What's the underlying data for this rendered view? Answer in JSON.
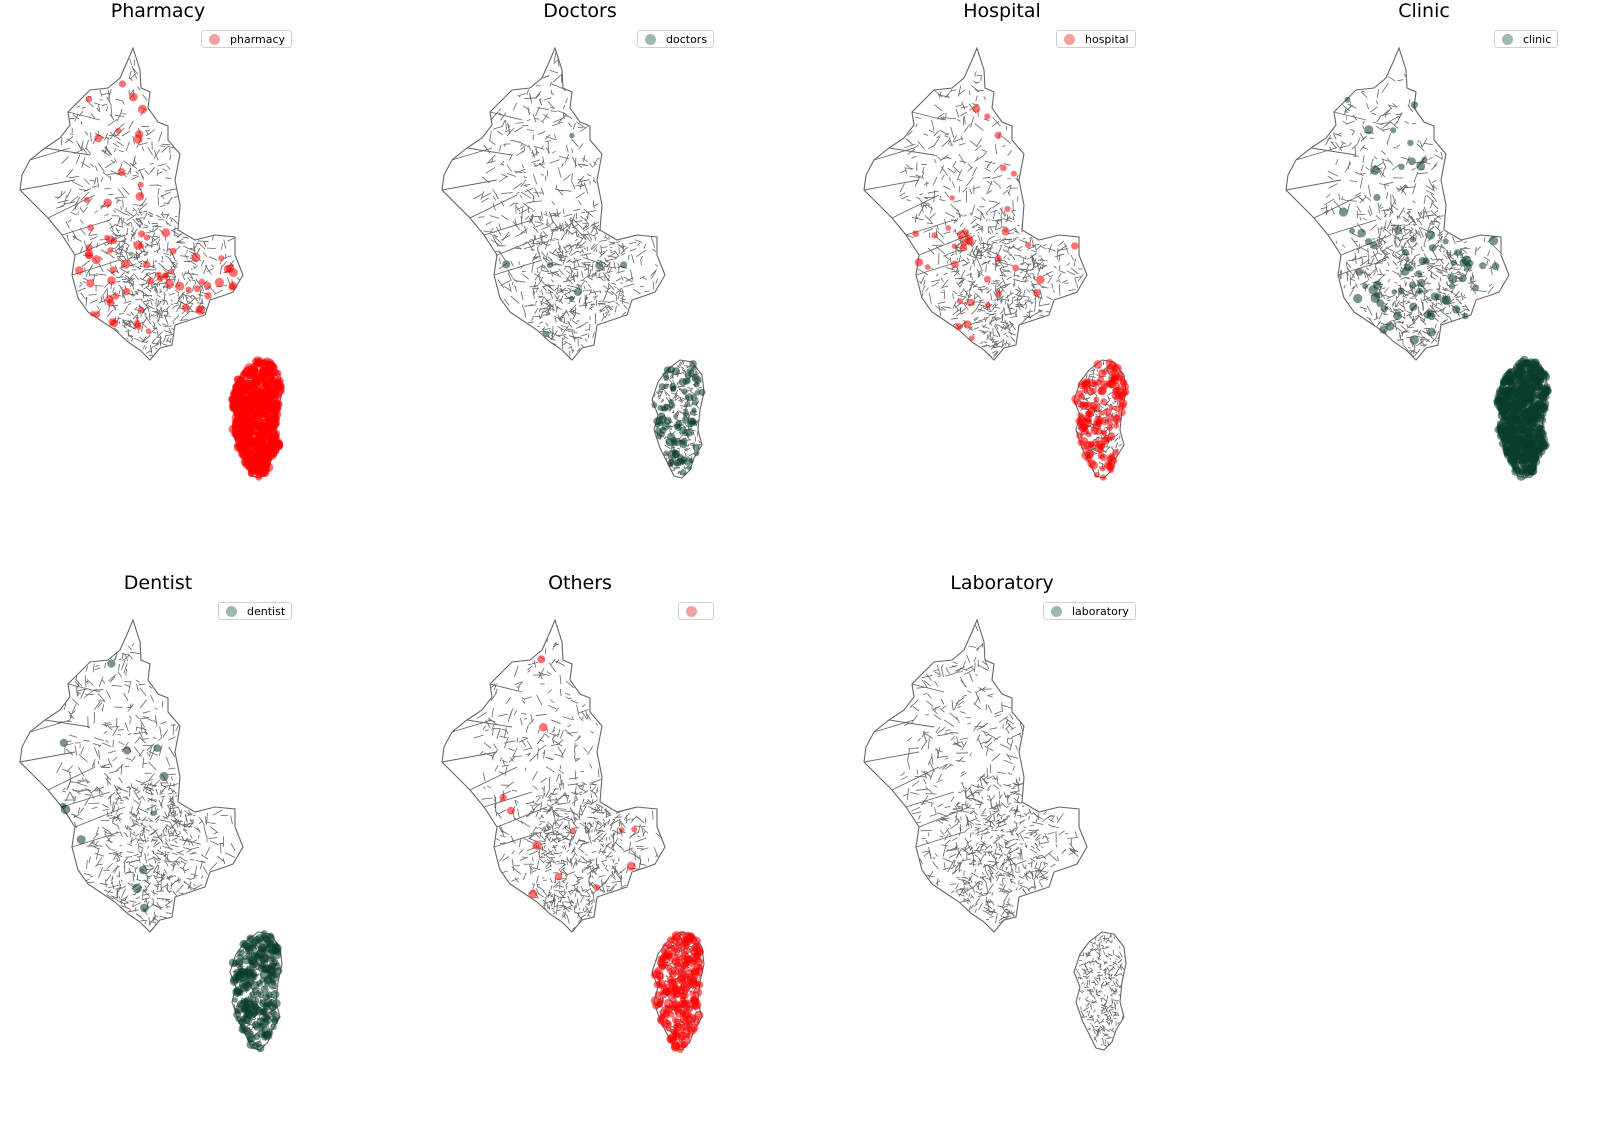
{
  "panels": [
    {
      "title": "Pharmacy",
      "legend": "pharmacy",
      "color": "#ff0000",
      "density": "very-high"
    },
    {
      "title": "Doctors",
      "legend": "doctors",
      "color": "#0a3d2e",
      "density": "low"
    },
    {
      "title": "Hospital",
      "legend": "hospital",
      "color": "#ff0000",
      "density": "medium"
    },
    {
      "title": "Clinic",
      "legend": "clinic",
      "color": "#0a3d2e",
      "density": "very-high"
    },
    {
      "title": "Dentist",
      "legend": "dentist",
      "color": "#0a3d2e",
      "density": "high"
    },
    {
      "title": "Others",
      "legend": "",
      "color": "#ff0000",
      "density": "high"
    },
    {
      "title": "Laboratory",
      "legend": "laboratory",
      "color": "#0a3d2e",
      "density": "none"
    }
  ],
  "colors": {
    "red": "#ff0000",
    "red_legend": "#f4a0a0",
    "green": "#0a3d2e",
    "green_legend": "#9fb8ad",
    "boundary": "#666666"
  }
}
